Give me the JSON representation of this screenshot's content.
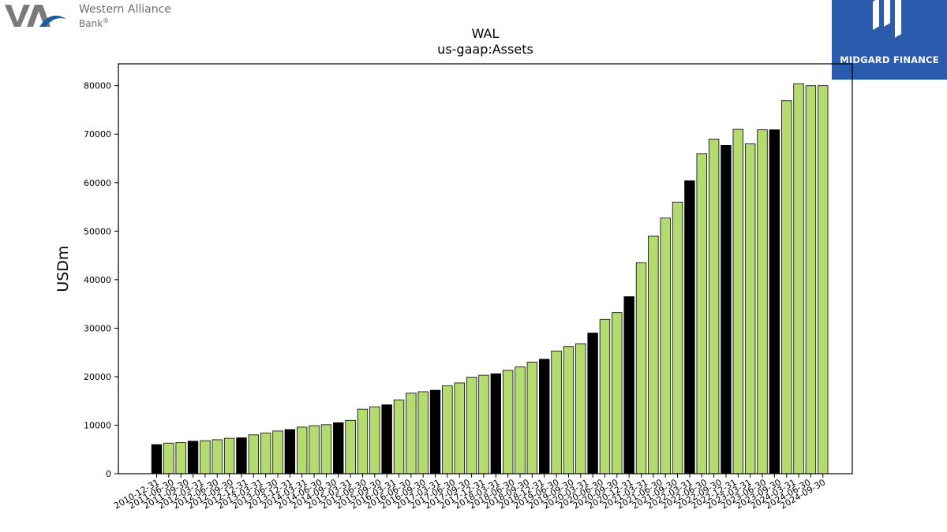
{
  "logos": {
    "left": {
      "line1": "Western Alliance",
      "line2": "Bank",
      "mark": "®"
    },
    "right": {
      "label": "MIDGARD FINANCE"
    }
  },
  "colors": {
    "highlight": "#000000",
    "normal": "#b3db6f",
    "edge": "#000000"
  },
  "chart_data": {
    "type": "bar",
    "title": "WAL",
    "subtitle": "us-gaap:Assets",
    "ylabel": "USDm",
    "xlabel": "",
    "ylim": [
      0,
      84500
    ],
    "yticks": [
      0,
      10000,
      20000,
      30000,
      40000,
      50000,
      60000,
      70000,
      80000
    ],
    "grid": false,
    "categories": [
      "2010-12-31",
      "2011-03-31",
      "2011-06-30",
      "2011-09-30",
      "2011-12-31",
      "2012-03-31",
      "2012-06-30",
      "2012-09-30",
      "2012-12-31",
      "2013-03-31",
      "2013-06-30",
      "2013-09-30",
      "2013-12-31",
      "2014-03-31",
      "2014-06-30",
      "2014-09-30",
      "2014-12-31",
      "2015-03-31",
      "2015-06-30",
      "2015-09-30",
      "2015-12-31",
      "2016-03-31",
      "2016-06-30",
      "2016-09-30",
      "2016-12-31",
      "2017-03-31",
      "2017-06-30",
      "2017-09-30",
      "2017-12-31",
      "2018-03-31",
      "2018-06-30",
      "2018-09-30",
      "2018-12-31",
      "2019-03-31",
      "2019-06-30",
      "2019-09-30",
      "2019-12-31",
      "2020-03-31",
      "2020-06-30",
      "2020-09-30",
      "2020-12-31",
      "2021-03-31",
      "2021-06-30",
      "2021-09-30",
      "2021-12-31",
      "2022-03-31",
      "2022-06-30",
      "2022-09-30",
      "2022-12-31",
      "2023-03-31",
      "2023-06-30",
      "2023-09-30",
      "2023-12-31",
      "2024-03-31",
      "2024-06-30",
      "2024-09-30"
    ],
    "values": [
      6000,
      6300,
      6400,
      6700,
      6800,
      7000,
      7300,
      7400,
      8000,
      8400,
      8800,
      9100,
      9600,
      9900,
      10100,
      10500,
      11000,
      13300,
      13800,
      14200,
      15200,
      16600,
      16900,
      17200,
      18100,
      18700,
      19900,
      20300,
      20600,
      21300,
      22000,
      23000,
      23600,
      25300,
      26200,
      26800,
      29000,
      31800,
      33200,
      36500,
      43500,
      49000,
      52700,
      56000,
      60400,
      66000,
      69000,
      67700,
      71000,
      68000,
      70900,
      70900,
      76900,
      80400,
      80000,
      80000
    ],
    "highlight_indices": [
      0,
      3,
      7,
      11,
      15,
      19,
      23,
      28,
      32,
      36,
      39,
      44,
      47,
      51
    ],
    "tick_labels_display": [
      "2010-12-31",
      "2011-06-30",
      "2011-09-30",
      "2012-03-31",
      "2012-06-30",
      "2012-09-30",
      "2012-12-31",
      "2013-03-31",
      "2013-06-30",
      "2013-12-31",
      "2014-03-31",
      "2014-06-30",
      "2014-09-30",
      "2015-03-31",
      "2015-06-30",
      "2015-09-30",
      "2016-03-31",
      "2016-06-30",
      "2016-09-30",
      "2017-03-31",
      "2017-06-30",
      "2017-09-30",
      "2017-12-31",
      "2018-03-31",
      "2018-06-30",
      "2018-09-30",
      "2018-12-31",
      "2019-06-30",
      "2019-09-30",
      "2020-03-31",
      "2020-06-30",
      "2020-09-30",
      "2020-12-31",
      "2021-03-31",
      "2021-06-30",
      "2021-09-30",
      "2022-03-31",
      "2022-06-30",
      "2022-09-30",
      "2022-12-31",
      "2023-03-31",
      "2023-06-30",
      "2023-09-30",
      "2024-03-31",
      "2024-06-30",
      "2024-09-30"
    ]
  }
}
